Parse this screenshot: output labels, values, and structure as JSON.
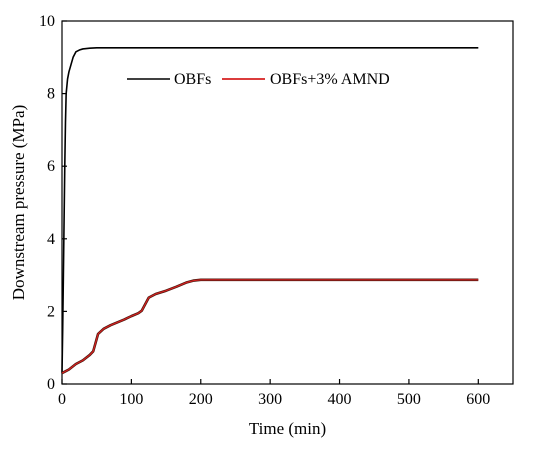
{
  "chart_data": {
    "type": "line",
    "title": "",
    "xlabel": "Time (min)",
    "ylabel": "Downstream pressure (MPa)",
    "xlim": [
      0,
      650
    ],
    "ylim": [
      0,
      10
    ],
    "xticks": [
      0,
      100,
      200,
      300,
      400,
      500,
      600
    ],
    "yticks": [
      0,
      2,
      4,
      6,
      8,
      10
    ],
    "grid": false,
    "legend_position": "top-center",
    "series": [
      {
        "name": "OBFs",
        "color": "#000000",
        "x": [
          0,
          1,
          2,
          3,
          4,
          5,
          6,
          8,
          10,
          13,
          16,
          20,
          25,
          30,
          40,
          50,
          100,
          200,
          300,
          400,
          500,
          600
        ],
        "y": [
          0.3,
          1.5,
          3.0,
          4.5,
          6.0,
          7.2,
          8.0,
          8.4,
          8.6,
          8.8,
          9.0,
          9.15,
          9.2,
          9.23,
          9.25,
          9.26,
          9.26,
          9.26,
          9.26,
          9.26,
          9.26,
          9.26
        ]
      },
      {
        "name": "OBFs+3% AMND",
        "color": "#d62020",
        "x": [
          0,
          5,
          10,
          20,
          30,
          40,
          45,
          52,
          60,
          70,
          80,
          90,
          100,
          110,
          115,
          125,
          135,
          150,
          165,
          180,
          190,
          200,
          300,
          400,
          500,
          600
        ],
        "y": [
          0.3,
          0.35,
          0.4,
          0.55,
          0.65,
          0.8,
          0.9,
          1.38,
          1.52,
          1.62,
          1.7,
          1.78,
          1.87,
          1.95,
          2.02,
          2.38,
          2.48,
          2.57,
          2.68,
          2.8,
          2.85,
          2.87,
          2.87,
          2.87,
          2.87,
          2.87
        ]
      }
    ]
  }
}
